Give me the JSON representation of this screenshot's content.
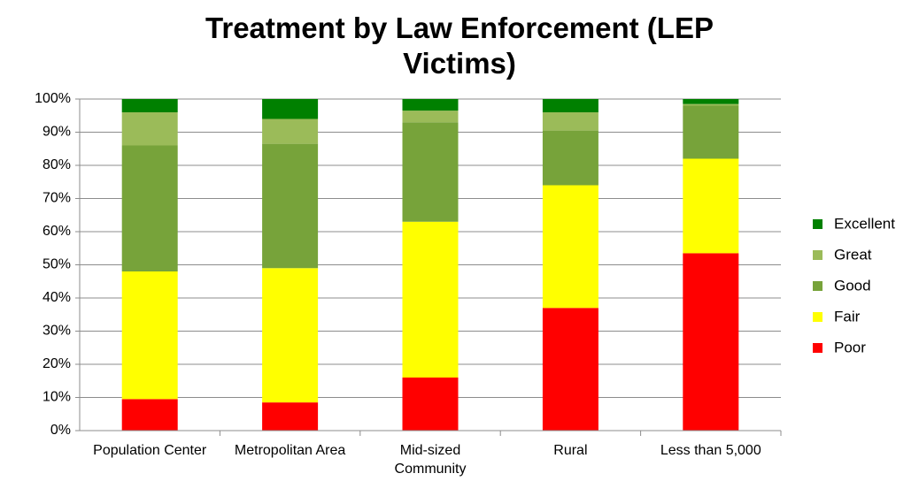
{
  "chart_data": {
    "type": "stacked_bar",
    "title": "Treatment by Law Enforcement (LEP Victims)",
    "categories": [
      "Population Center",
      "Metropolitan Area",
      "Mid-sized Community",
      "Rural",
      "Less than 5,000"
    ],
    "series": [
      {
        "name": "Poor",
        "color": "#ff0000",
        "values": [
          9.5,
          8.5,
          16,
          37,
          53.5
        ]
      },
      {
        "name": "Fair",
        "color": "#ffff00",
        "values": [
          38.5,
          40.5,
          47,
          37,
          28.5
        ]
      },
      {
        "name": "Good",
        "color": "#77a33a",
        "values": [
          38,
          37.5,
          30,
          16.5,
          16
        ]
      },
      {
        "name": "Great",
        "color": "#9bbb59",
        "values": [
          10,
          7.5,
          3.5,
          5.5,
          0.5
        ]
      },
      {
        "name": "Excellent",
        "color": "#008000",
        "values": [
          4,
          6,
          3.5,
          4,
          1.5
        ]
      }
    ],
    "ylim": [
      0,
      100
    ],
    "yticks": [
      {
        "value": 0,
        "label": "0%"
      },
      {
        "value": 10,
        "label": "10%"
      },
      {
        "value": 20,
        "label": "20%"
      },
      {
        "value": 30,
        "label": "30%"
      },
      {
        "value": 40,
        "label": "40%"
      },
      {
        "value": 50,
        "label": "50%"
      },
      {
        "value": 60,
        "label": "60%"
      },
      {
        "value": 70,
        "label": "70%"
      },
      {
        "value": 80,
        "label": "80%"
      },
      {
        "value": 90,
        "label": "90%"
      },
      {
        "value": 100,
        "label": "100%"
      }
    ],
    "grid": true,
    "legend": "right"
  }
}
